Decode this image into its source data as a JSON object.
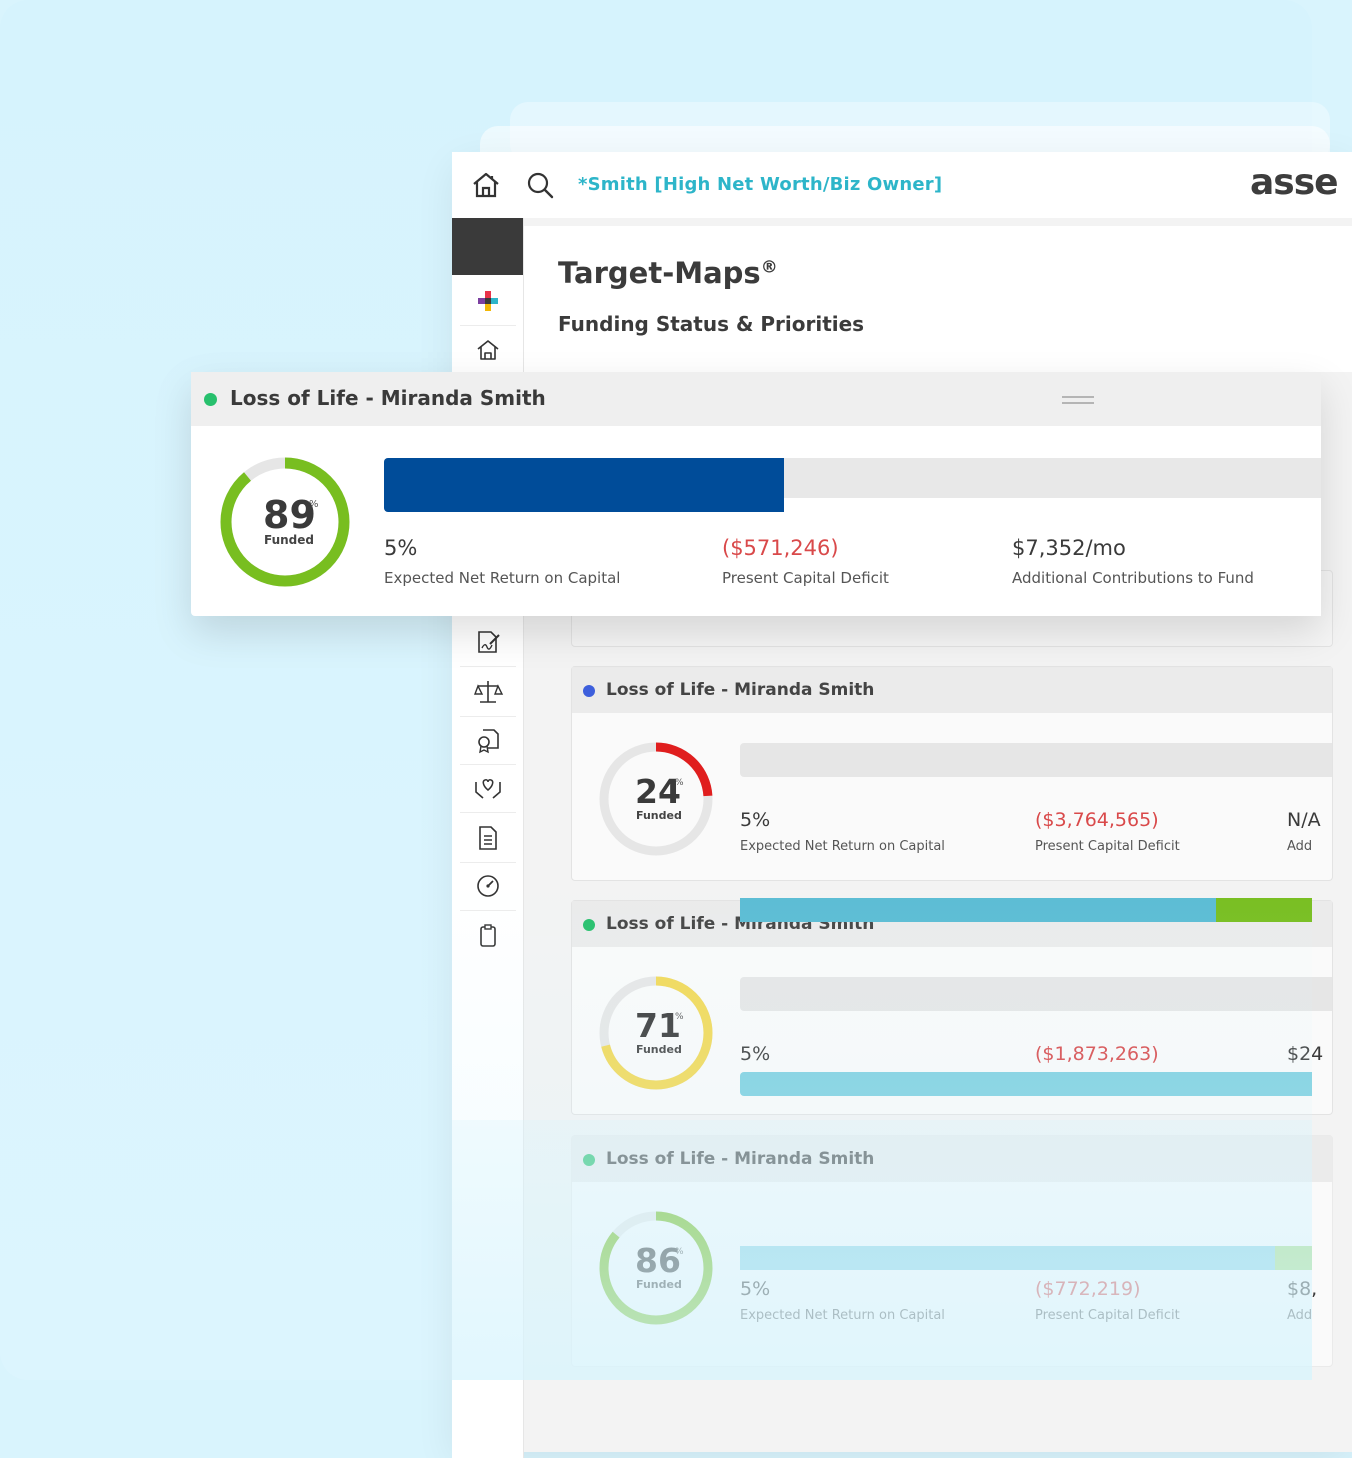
{
  "app": {
    "client_name": "*Smith [High Net Worth/Biz Owner]",
    "brand_text": "asse",
    "page_title": "Target-Maps",
    "page_title_mark": "®",
    "page_subtitle": "Funding Status & Priorities"
  },
  "colors": {
    "accent_teal": "#2db5c9",
    "funded_bar_blue": "#004c99",
    "deficit_red": "#d9494a",
    "gauge_green": "#78be20",
    "gauge_red": "#e01e1e",
    "gauge_yellow": "#f2d957",
    "bar_cyan": "#5bbcd4",
    "bar_green": "#78be20"
  },
  "sidebar_icons": [
    "add-plus-icon",
    "home-icon",
    "signature-document-icon",
    "scale-balance-icon",
    "certificate-icon",
    "hands-heart-icon",
    "document-icon",
    "speedometer-icon",
    "clipboard-icon"
  ],
  "floating_card": {
    "title": "Loss of Life - Miranda Smith",
    "status_color": "#27c06d",
    "gauge": {
      "value": "89",
      "pct": "%",
      "label": "Funded",
      "fraction": 0.89
    },
    "bar_fill_fraction": 0.4,
    "metrics": [
      {
        "value": "5%",
        "label": "Expected Net Return on Capital"
      },
      {
        "value": "($571,246)",
        "label": "Present Capital Deficit"
      },
      {
        "value": "$7,352/mo",
        "label": "Additional Contributions to Fund"
      }
    ]
  },
  "cards": [
    {
      "title": "Loss of Life - Miranda Smith",
      "status_color": "#3d5fdc",
      "gauge": {
        "value": "24",
        "pct": "%",
        "label": "Funded",
        "fraction": 0.24
      },
      "metrics": [
        {
          "value": "5%",
          "label": "Expected Net Return on Capital"
        },
        {
          "value": "($3,764,565)",
          "label": "Present Capital Deficit"
        },
        {
          "value": "N/A",
          "label": "Add"
        }
      ]
    },
    {
      "title": "Loss of Life - Miranda Smith",
      "status_color": "#27c06d",
      "gauge": {
        "value": "71",
        "pct": "%",
        "label": "Funded",
        "fraction": 0.71
      },
      "metrics": [
        {
          "value": "5%",
          "label": ""
        },
        {
          "value": "($1,873,263)",
          "label": ""
        },
        {
          "value": "$24",
          "label": ""
        }
      ]
    },
    {
      "title": "Loss of Life - Miranda Smith",
      "status_color": "#27c06d",
      "gauge": {
        "value": "86",
        "pct": "%",
        "label": "Funded",
        "fraction": 0.86
      },
      "metrics": [
        {
          "value": "5%",
          "label": "Expected Net Return on Capital"
        },
        {
          "value": "($772,219)",
          "label": "Present Capital Deficit"
        },
        {
          "value": "$8,",
          "label": "Add"
        }
      ]
    }
  ]
}
